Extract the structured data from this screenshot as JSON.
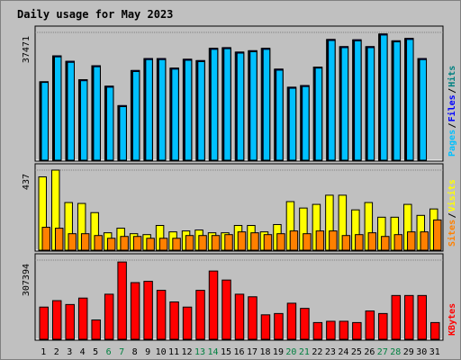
{
  "chart_data": {
    "type": "bar",
    "title": "Daily usage for May 2023",
    "colors": {
      "background": "#c0c0c0",
      "panel": "#c0c0c0",
      "title": "#0000ff",
      "axis_text": "#000000",
      "weekend_text": "#008040",
      "hits": "#008080",
      "files": "#0000ff",
      "pages": "#00c0ff",
      "visits": "#ffff00",
      "sites": "#ff8000",
      "kbytes": "#ff0000"
    },
    "categories": [
      "1",
      "2",
      "3",
      "4",
      "5",
      "6",
      "7",
      "8",
      "9",
      "10",
      "11",
      "12",
      "13",
      "14",
      "15",
      "16",
      "17",
      "18",
      "19",
      "20",
      "21",
      "22",
      "23",
      "24",
      "25",
      "26",
      "27",
      "28",
      "29",
      "30",
      "31"
    ],
    "weekend_days": [
      "6",
      "7",
      "13",
      "14",
      "20",
      "21",
      "27",
      "28"
    ],
    "panels": [
      {
        "id": "hits-panel",
        "ymax": 37471,
        "ymax_label": "37471",
        "legend": [
          {
            "text": "Pages",
            "color": "#00c0ff"
          },
          {
            "text": "/",
            "color": "#000000"
          },
          {
            "text": "Files",
            "color": "#0000ff"
          },
          {
            "text": "/",
            "color": "#000000"
          },
          {
            "text": "Hits",
            "color": "#008080"
          }
        ],
        "series": [
          {
            "name": "Hits",
            "color": "#008080",
            "values": [
              23000,
              30600,
              29000,
              23600,
              27700,
              21700,
              16000,
              26300,
              29800,
              29800,
              27000,
              29600,
              29200,
              32800,
              33000,
              31700,
              32100,
              32800,
              26700,
              21400,
              21900,
              27300,
              35400,
              33300,
              35300,
              33300,
              37000,
              35000,
              35700,
              29800,
              0
            ]
          },
          {
            "name": "Files",
            "color": "#0000ff",
            "values": [
              23000,
              30600,
              29000,
              23600,
              27700,
              21700,
              16000,
              26300,
              29800,
              29800,
              27000,
              29600,
              29200,
              32800,
              33000,
              31700,
              32100,
              32800,
              26700,
              21400,
              21900,
              27300,
              35400,
              33300,
              35300,
              33300,
              37000,
              35000,
              35700,
              29800,
              0
            ]
          },
          {
            "name": "Pages",
            "color": "#00c0ff",
            "values": [
              22800,
              30300,
              28700,
              23300,
              27400,
              21400,
              15700,
              26000,
              29500,
              29500,
              26700,
              29300,
              28900,
              32500,
              32700,
              31400,
              31800,
              32500,
              26400,
              21100,
              21600,
              27000,
              35100,
              33000,
              35000,
              33000,
              36700,
              34700,
              35400,
              29500,
              0
            ]
          }
        ]
      },
      {
        "id": "visits-panel",
        "ymax": 437,
        "ymax_label": "437",
        "legend": [
          {
            "text": "Sites",
            "color": "#ff8000"
          },
          {
            "text": "/",
            "color": "#000000"
          },
          {
            "text": "Visits",
            "color": "#ffff00"
          }
        ],
        "series": [
          {
            "name": "Visits",
            "color": "#ffff00",
            "values": [
              400,
              437,
              260,
              255,
              205,
              95,
              120,
              90,
              85,
              135,
              100,
              105,
              110,
              95,
              95,
              135,
              135,
              100,
              140,
              265,
              230,
              250,
              300,
              300,
              220,
              260,
              180,
              180,
              250,
              190,
              225
            ]
          },
          {
            "name": "Sites",
            "color": "#ff8000",
            "values": [
              125,
              120,
              90,
              90,
              80,
              65,
              75,
              75,
              65,
              65,
              65,
              80,
              80,
              80,
              85,
              100,
              95,
              85,
              90,
              105,
              90,
              105,
              105,
              80,
              85,
              95,
              75,
              85,
              100,
              100,
              165
            ]
          }
        ]
      },
      {
        "id": "kbytes-panel",
        "ymax": 307394,
        "ymax_label": "307394",
        "legend": [
          {
            "text": "KBytes",
            "color": "#ff0000"
          }
        ],
        "series": [
          {
            "name": "KBytes",
            "color": "#ff0000",
            "values": [
              125000,
              150000,
              135000,
              160000,
              75000,
              175000,
              300000,
              220000,
              225000,
              190000,
              145000,
              125000,
              190000,
              265000,
              230000,
              175000,
              165000,
              95000,
              100000,
              140000,
              120000,
              65000,
              70000,
              70000,
              65000,
              110000,
              100000,
              170000,
              170000,
              170000,
              65000
            ]
          }
        ]
      }
    ]
  }
}
